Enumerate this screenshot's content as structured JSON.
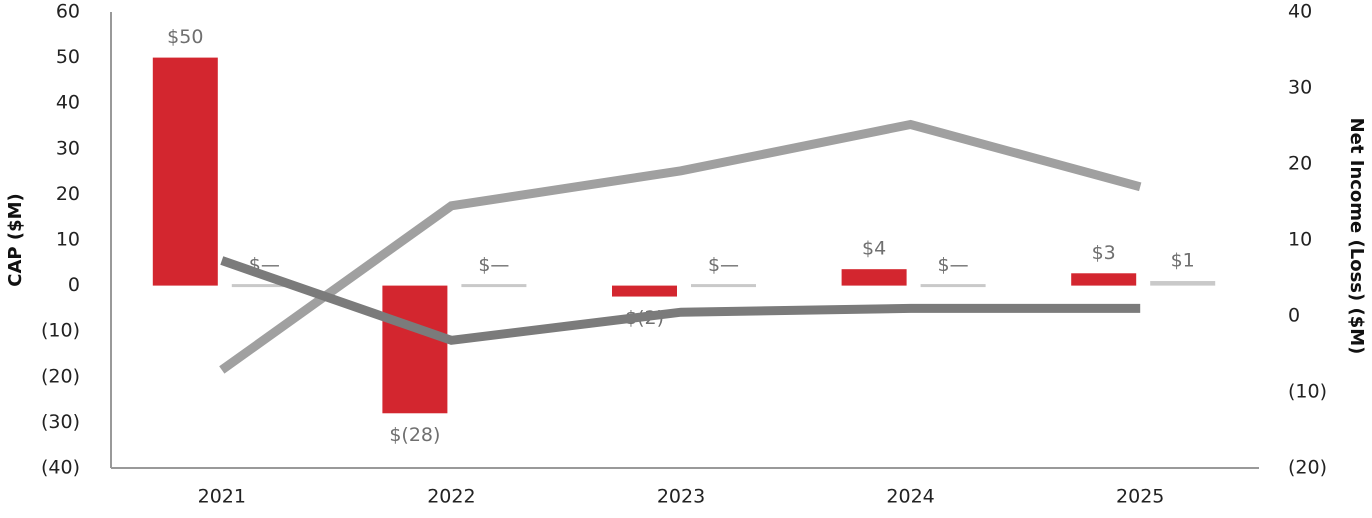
{
  "chart_data": {
    "type": "combo",
    "y_label": "CAP ($M)",
    "y2_label": "Net Income (Loss) ($M)",
    "categories": [
      "2021",
      "2022",
      "2023",
      "2024",
      "2025"
    ],
    "ylim": [
      -40,
      60
    ],
    "yticks": [
      {
        "value": -40,
        "label": "(40)"
      },
      {
        "value": -30,
        "label": "(30)"
      },
      {
        "value": -20,
        "label": "(20)"
      },
      {
        "value": -10,
        "label": "(10)"
      },
      0,
      10,
      20,
      30,
      40,
      50,
      60
    ],
    "y2lim": [
      -20,
      40
    ],
    "y2ticks": [
      {
        "value": -20,
        "label": "(20)"
      },
      {
        "value": -10,
        "label": "(10)"
      },
      0,
      10,
      20,
      30,
      40
    ],
    "series": [
      {
        "type": "bar",
        "color": "#d3262f",
        "values": [
          50,
          -28,
          -2.4,
          3.6,
          2.7
        ],
        "value_labels": [
          "$50",
          "$(28)",
          "$(2)",
          "$4",
          "$3"
        ]
      },
      {
        "type": "bar",
        "color": "#c9c9c9",
        "values": [
          0,
          0,
          0,
          0,
          1
        ],
        "value_labels": [
          "$—",
          "$—",
          "$—",
          "$—",
          "$1"
        ]
      },
      {
        "type": "line",
        "axis": "y2",
        "color": "#a0a0a0",
        "values": [
          -7.1,
          14.5,
          19.1,
          25.2,
          17.0
        ]
      },
      {
        "type": "line",
        "axis": "y2",
        "color": "#7b7b7b",
        "values": [
          7.3,
          -3.2,
          0.5,
          1.0,
          1.0
        ]
      }
    ]
  }
}
